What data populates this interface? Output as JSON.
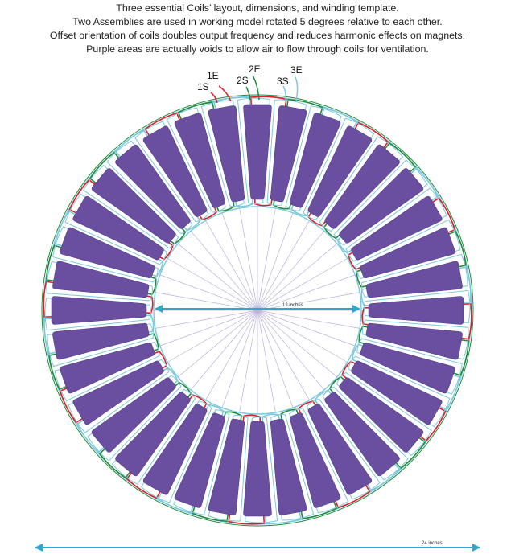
{
  "caption": [
    "Three essential Coils’ layout, dimensions, and winding template.",
    "Two Assemblies are used in working model rotated 5 degrees relative to each other.",
    "Offset orientation of coils doubles output frequency and reduces harmonic effects on magnets.",
    "Purple areas are actually voids to allow air to flow through coils for ventilation."
  ],
  "coil_labels": {
    "c1_start": "1S",
    "c1_end": "1E",
    "c2_start": "2S",
    "c2_end": "2E",
    "c3_start": "3S",
    "c3_end": "3E"
  },
  "dimensions": {
    "inner": "12 inches",
    "outer": "24 inches"
  },
  "colors": {
    "void_fill": "#6a4fa0",
    "coil1": "#e01e2a",
    "coil2": "#1f8a3a",
    "coil3": "#7cc8dc",
    "dimension_arrow": "#2ea8d0",
    "spokes": "#b9b1d9"
  },
  "void_count": 36
}
